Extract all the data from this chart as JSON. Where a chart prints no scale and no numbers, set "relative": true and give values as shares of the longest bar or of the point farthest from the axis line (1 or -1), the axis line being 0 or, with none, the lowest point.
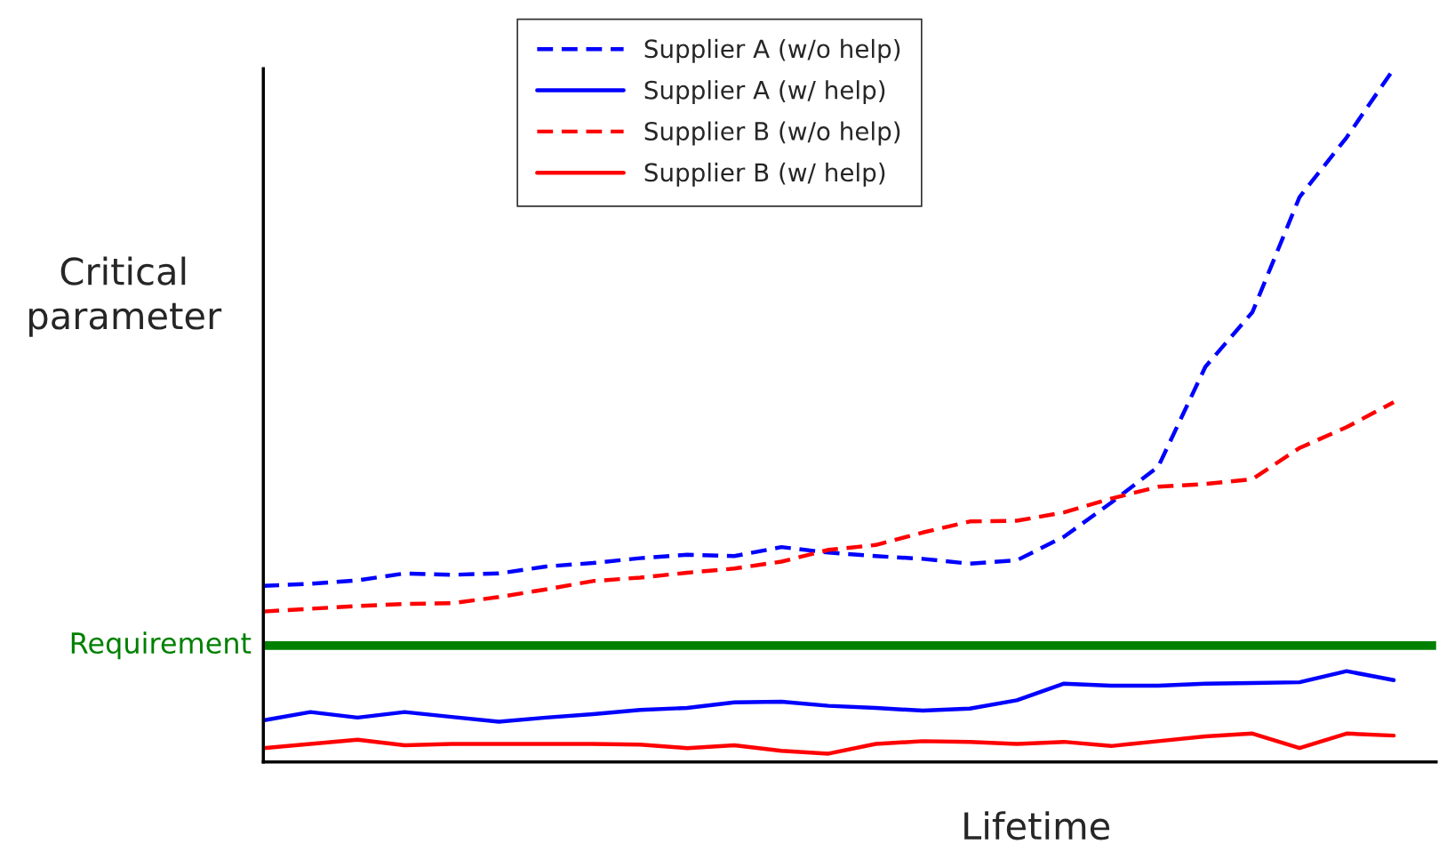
{
  "chart_data": {
    "type": "line",
    "relative": true,
    "xlabel": "Lifetime",
    "ylabel": "Critical\nparameter",
    "legend": "top",
    "grid": false,
    "categories": [
      null,
      null,
      null,
      null,
      null,
      null,
      null,
      null,
      null,
      null,
      null,
      null,
      null,
      null,
      null,
      null,
      null,
      null,
      null,
      null,
      null,
      null,
      null,
      null,
      null
    ],
    "series": [
      {
        "name": "Supplier A (w/o help)",
        "color": "#0000ff",
        "line_style": "dashed",
        "values": [
          0.254,
          0.257,
          0.262,
          0.272,
          0.27,
          0.272,
          0.282,
          0.287,
          0.294,
          0.299,
          0.297,
          0.31,
          0.302,
          0.297,
          0.293,
          0.286,
          0.291,
          0.325,
          0.374,
          0.426,
          0.57,
          0.649,
          0.815,
          0.901,
          1.0
        ]
      },
      {
        "name": "Supplier A (w/ help)",
        "color": "#0000ff",
        "line_style": "solid",
        "values": [
          0.06,
          0.072,
          0.064,
          0.072,
          0.065,
          0.058,
          0.064,
          0.069,
          0.075,
          0.078,
          0.086,
          0.087,
          0.081,
          0.078,
          0.074,
          0.077,
          0.089,
          0.113,
          0.11,
          0.11,
          0.113,
          0.114,
          0.115,
          0.131,
          0.118
        ]
      },
      {
        "name": "Supplier B (w/o help)",
        "color": "#ff0000",
        "line_style": "dashed",
        "values": [
          0.217,
          0.221,
          0.225,
          0.228,
          0.229,
          0.238,
          0.249,
          0.261,
          0.266,
          0.273,
          0.279,
          0.289,
          0.306,
          0.313,
          0.331,
          0.347,
          0.348,
          0.36,
          0.38,
          0.397,
          0.401,
          0.408,
          0.453,
          0.483,
          0.519
        ]
      },
      {
        "name": "Supplier B (w/ help)",
        "color": "#ff0000",
        "line_style": "solid",
        "values": [
          0.02,
          0.026,
          0.032,
          0.024,
          0.026,
          0.026,
          0.026,
          0.026,
          0.025,
          0.02,
          0.024,
          0.016,
          0.012,
          0.026,
          0.03,
          0.029,
          0.026,
          0.029,
          0.023,
          0.03,
          0.037,
          0.041,
          0.02,
          0.041,
          0.038
        ]
      }
    ],
    "ref_lines": [
      {
        "axis": "y",
        "value": 0.168,
        "label": "Requirement",
        "color": "#008000",
        "line_style": "solid"
      }
    ]
  }
}
